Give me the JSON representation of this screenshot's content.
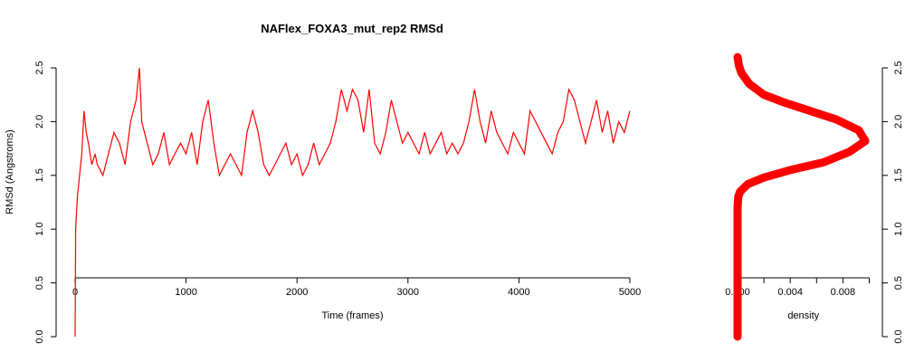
{
  "chart_data": [
    {
      "type": "line",
      "title": "NAFlex_FOXA3_mut_rep2 RMSd",
      "xlabel": "Time (frames)",
      "ylabel": "RMSd (Angstroms)",
      "xlim": [
        0,
        5000
      ],
      "ylim": [
        0,
        2.5
      ],
      "xticks": [
        "0",
        "1000",
        "2000",
        "3000",
        "4000",
        "5000"
      ],
      "yticks": [
        "0.0",
        "0.5",
        "1.0",
        "1.5",
        "2.0",
        "2.5"
      ],
      "grid": false,
      "color": "#ff0000",
      "series": [
        {
          "x": [
            0,
            5,
            10,
            20,
            40,
            60,
            80,
            100,
            120,
            150,
            180,
            200,
            250,
            300,
            350,
            400,
            450,
            500,
            550,
            580,
            600,
            650,
            700,
            750,
            800,
            850,
            900,
            950,
            1000,
            1050,
            1100,
            1150,
            1200,
            1250,
            1300,
            1350,
            1400,
            1450,
            1500,
            1550,
            1600,
            1650,
            1700,
            1750,
            1800,
            1850,
            1900,
            1950,
            2000,
            2050,
            2100,
            2150,
            2200,
            2250,
            2300,
            2350,
            2400,
            2450,
            2500,
            2550,
            2600,
            2650,
            2700,
            2750,
            2800,
            2850,
            2900,
            2950,
            3000,
            3050,
            3100,
            3150,
            3200,
            3250,
            3300,
            3350,
            3400,
            3450,
            3500,
            3550,
            3600,
            3650,
            3700,
            3750,
            3800,
            3850,
            3900,
            3950,
            4000,
            4050,
            4100,
            4150,
            4200,
            4250,
            4300,
            4350,
            4400,
            4450,
            4500,
            4550,
            4600,
            4650,
            4700,
            4750,
            4800,
            4850,
            4900,
            4950,
            5000
          ],
          "y": [
            0.0,
            1.0,
            1.1,
            1.3,
            1.5,
            1.7,
            2.1,
            1.9,
            1.8,
            1.6,
            1.7,
            1.6,
            1.5,
            1.7,
            1.9,
            1.8,
            1.6,
            2.0,
            2.2,
            2.5,
            2.0,
            1.8,
            1.6,
            1.7,
            1.9,
            1.6,
            1.7,
            1.8,
            1.7,
            1.9,
            1.6,
            2.0,
            2.2,
            1.8,
            1.5,
            1.6,
            1.7,
            1.6,
            1.5,
            1.9,
            2.1,
            1.9,
            1.6,
            1.5,
            1.6,
            1.7,
            1.8,
            1.6,
            1.7,
            1.5,
            1.6,
            1.8,
            1.6,
            1.7,
            1.8,
            2.0,
            2.3,
            2.1,
            2.3,
            2.2,
            1.9,
            2.3,
            1.8,
            1.7,
            1.9,
            2.2,
            2.0,
            1.8,
            1.9,
            1.8,
            1.7,
            1.9,
            1.7,
            1.8,
            1.9,
            1.7,
            1.8,
            1.7,
            1.8,
            2.0,
            2.3,
            2.0,
            1.8,
            2.1,
            1.9,
            1.8,
            1.7,
            1.9,
            1.8,
            1.7,
            2.1,
            2.0,
            1.9,
            1.8,
            1.7,
            1.9,
            2.0,
            2.3,
            2.2,
            2.0,
            1.8,
            2.0,
            2.2,
            1.9,
            2.1,
            1.8,
            2.0,
            1.9,
            2.1
          ]
        }
      ]
    },
    {
      "type": "line",
      "xlabel": "density",
      "xlim": [
        0,
        0.01
      ],
      "ylim": [
        0,
        2.5
      ],
      "xticks": [
        "0.000",
        "0.004",
        "0.008"
      ],
      "yticks": [
        "0.0",
        "0.5",
        "1.0",
        "1.5",
        "2.0",
        "2.5"
      ],
      "y_axis_side": "right",
      "grid": false,
      "color": "#ff0000",
      "series": [
        {
          "x": [
            0.0,
            0.0,
            0.0,
            5e-05,
            0.0002,
            0.0008,
            0.002,
            0.004,
            0.0065,
            0.0085,
            0.0097,
            0.0092,
            0.0075,
            0.0055,
            0.0035,
            0.002,
            0.0009,
            0.0003,
            0.0001,
            0.0
          ],
          "y": [
            0.0,
            0.8,
            1.2,
            1.3,
            1.35,
            1.42,
            1.48,
            1.55,
            1.62,
            1.72,
            1.82,
            1.92,
            2.02,
            2.1,
            2.18,
            2.25,
            2.35,
            2.45,
            2.52,
            2.6
          ]
        }
      ]
    }
  ]
}
